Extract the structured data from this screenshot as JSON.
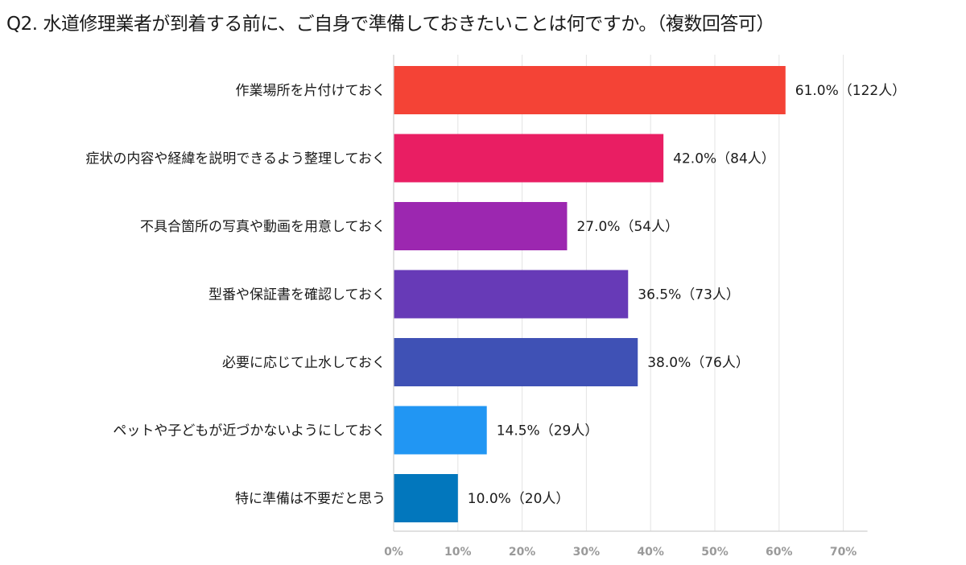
{
  "chart_data": {
    "type": "bar",
    "orientation": "horizontal",
    "title": "Q2. 水道修理業者が到着する前に、ご自身で準備しておきたいことは何ですか。（複数回答可）",
    "categories": [
      "作業場所を片付けておく",
      "症状の内容や経緯を説明できるよう整理しておく",
      "不具合箇所の写真や動画を用意しておく",
      "型番や保証書を確認しておく",
      "必要に応じて止水しておく",
      "ペットや子どもが近づかないようにしておく",
      "特に準備は不要だと思う"
    ],
    "values": [
      61.0,
      42.0,
      27.0,
      36.5,
      38.0,
      14.5,
      10.0
    ],
    "data_labels": [
      "61.0%（122人）",
      "42.0%（84人）",
      "27.0%（54人）",
      "36.5%（73人）",
      "38.0%（76人）",
      "14.5%（29人）",
      "10.0%（20人）"
    ],
    "colors": [
      "#f44336",
      "#e91e63",
      "#9c27b0",
      "#673ab7",
      "#3f51b5",
      "#2196f3",
      "#0277bd"
    ],
    "xlim": [
      0,
      70
    ],
    "xticks": [
      "0%",
      "10%",
      "20%",
      "30%",
      "40%",
      "50%",
      "60%",
      "70%"
    ],
    "grid": true,
    "legend": "none"
  }
}
